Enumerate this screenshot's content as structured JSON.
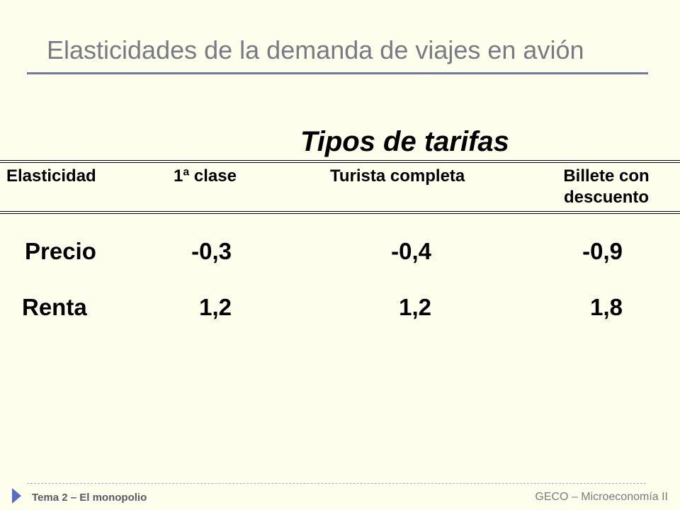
{
  "slide": {
    "title": "Elasticidades de la demanda de viajes en avión"
  },
  "table": {
    "heading": "Tipos de tarifas",
    "headers": [
      "Elasticidad",
      "1ª clase",
      "Turista completa",
      "Billete con descuento"
    ],
    "rows": [
      {
        "label": "Precio",
        "values": [
          "-0,3",
          "-0,4",
          "-0,9"
        ]
      },
      {
        "label": "Renta",
        "values": [
          "1,2",
          "1,2",
          "1,8"
        ]
      }
    ]
  },
  "footer": {
    "left": "Tema 2 – El monopolio",
    "right": "GECO – Microeconomía II",
    "arrow_icon": "triangle-right-icon",
    "accent_color": "#5b6bc8"
  }
}
